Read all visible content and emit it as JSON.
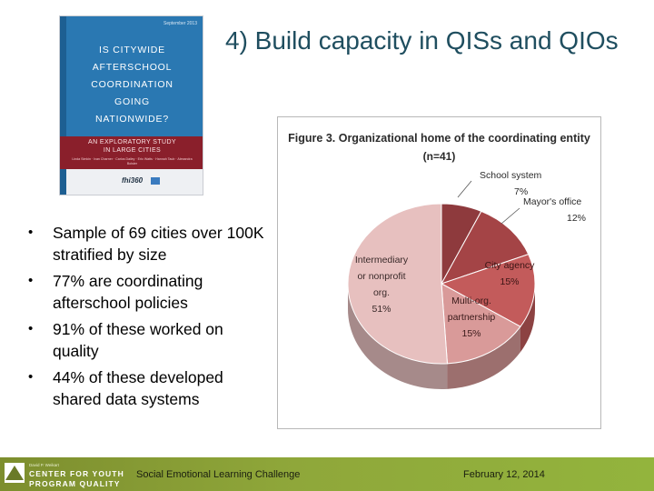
{
  "slide": {
    "title": "4) Build capacity in QISs and QIOs",
    "bullets": [
      "Sample of 69 cities over 100K stratified by size",
      "77% are coordinating afterschool policies",
      "91% of these worked on quality",
      "44% of these developed shared data systems"
    ]
  },
  "cover": {
    "date": "September 2013",
    "title": "IS CITYWIDE\nAFTERSCHOOL\nCOORDINATION\nGOING\nNATIONWIDE?",
    "subtitle": "AN EXPLORATORY STUDY\nIN LARGE CITIES",
    "authors": "Linda Simkin · Ivan Charner · Carlos Dailey · Eric Watts · Hannah Taub · Alexandra Bolster",
    "logo": "fhi360"
  },
  "chart_data": {
    "type": "pie",
    "title": "Figure 3. Organizational home of the coordinating entity",
    "subtitle": "(n=41)",
    "categories": [
      "School system",
      "Mayor's office",
      "City agency",
      "Multi-org. partnership",
      "Intermediary or nonprofit org."
    ],
    "values": [
      7,
      12,
      15,
      15,
      51
    ],
    "value_labels": [
      "7%",
      "12%",
      "15%",
      "15%",
      "51%"
    ],
    "colors": [
      "#8e3a3d",
      "#a44446",
      "#c35b5b",
      "#d99a99",
      "#e7c0bf"
    ]
  },
  "footer": {
    "logo_small": "David P. Weikart",
    "logo_line1": "CENTER FOR YOUTH",
    "logo_line2": "PROGRAM QUALITY",
    "event": "Social Emotional Learning Challenge",
    "date": "February 12, 2014"
  }
}
